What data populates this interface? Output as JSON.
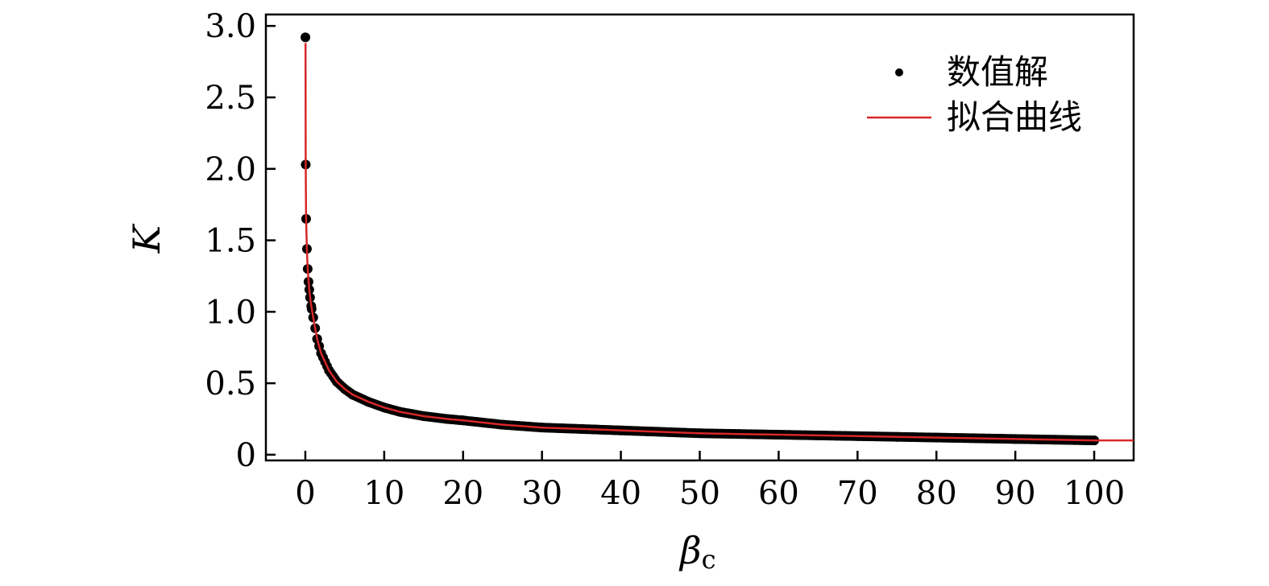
{
  "chart_data": {
    "type": "scatter",
    "xlabel": "β",
    "xlabel_subscript": "c",
    "ylabel": "K",
    "xlim": [
      -5,
      105
    ],
    "ylim": [
      -0.04,
      3.08
    ],
    "xticks": [
      0,
      10,
      20,
      30,
      40,
      50,
      60,
      70,
      80,
      90,
      100
    ],
    "xtick_labels": [
      "0",
      "10",
      "20",
      "30",
      "40",
      "50",
      "60",
      "70",
      "80",
      "90",
      "100"
    ],
    "yticks": [
      0,
      0.5,
      1.0,
      1.5,
      2.0,
      2.5,
      3.0
    ],
    "ytick_labels": [
      "0",
      "0.5",
      "1.0",
      "1.5",
      "2.0",
      "2.5",
      "3.0"
    ],
    "grid": false,
    "legend_position": "top-right",
    "series": [
      {
        "name": "数值解",
        "kind": "scatter",
        "color": "#000000",
        "x": [
          0.01,
          0.05,
          0.1,
          0.2,
          0.3,
          0.4,
          0.6,
          0.8,
          1,
          1.5,
          2,
          3,
          4,
          5,
          6,
          8,
          10,
          12,
          15,
          18,
          20,
          25,
          30,
          35,
          40,
          45,
          50,
          55,
          60,
          65,
          70,
          75,
          80,
          85,
          90,
          95,
          100
        ],
        "y": [
          2.92,
          2.03,
          1.65,
          1.44,
          1.3,
          1.21,
          1.1,
          1.02,
          0.96,
          0.81,
          0.71,
          0.59,
          0.51,
          0.46,
          0.42,
          0.37,
          0.33,
          0.3,
          0.27,
          0.25,
          0.24,
          0.21,
          0.19,
          0.18,
          0.17,
          0.16,
          0.15,
          0.145,
          0.14,
          0.135,
          0.13,
          0.125,
          0.12,
          0.115,
          0.11,
          0.105,
          0.1
        ]
      },
      {
        "name": "拟合曲线",
        "kind": "line",
        "color": "#d62728",
        "x": [
          0.02,
          0.05,
          0.1,
          0.2,
          0.3,
          0.5,
          0.7,
          1,
          1.5,
          2,
          3,
          4,
          5,
          6,
          8,
          10,
          12,
          15,
          18,
          20,
          25,
          30,
          35,
          40,
          45,
          50,
          55,
          60,
          65,
          70,
          75,
          80,
          85,
          90,
          95,
          100,
          105
        ],
        "y": [
          2.88,
          2.05,
          1.66,
          1.43,
          1.3,
          1.15,
          1.06,
          0.96,
          0.81,
          0.71,
          0.59,
          0.51,
          0.46,
          0.42,
          0.37,
          0.33,
          0.3,
          0.27,
          0.25,
          0.24,
          0.21,
          0.19,
          0.18,
          0.17,
          0.16,
          0.15,
          0.145,
          0.14,
          0.135,
          0.13,
          0.125,
          0.12,
          0.115,
          0.11,
          0.105,
          0.1,
          0.1
        ]
      }
    ]
  }
}
